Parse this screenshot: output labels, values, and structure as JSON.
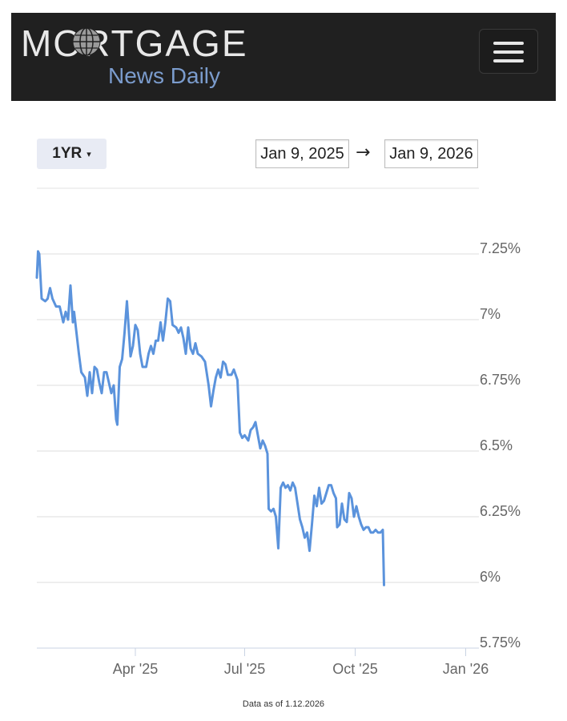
{
  "header": {
    "logo_top": "MORTGAGE",
    "logo_sub": "News Daily",
    "menu_icon": "hamburger-icon"
  },
  "controls": {
    "range_label": "1YR",
    "range_caret": "▾",
    "start_date": "Jan 9, 2025",
    "arrow": "→",
    "end_date": "Jan 9, 2026"
  },
  "footer": {
    "note": "Data as of 1.12.2026"
  },
  "colors": {
    "header_bg": "#202020",
    "line": "#5b93dc",
    "logo_accent": "#7b9ccd"
  },
  "chart_data": {
    "type": "line",
    "title": "",
    "xlabel": "",
    "ylabel": "",
    "ylim": [
      5.75,
      7.5
    ],
    "xlim": [
      "2025-01-09",
      "2026-01-12"
    ],
    "y_ticks": [
      {
        "value": 7.25,
        "label": "7.25%"
      },
      {
        "value": 7.0,
        "label": "7%"
      },
      {
        "value": 6.75,
        "label": "6.75%"
      },
      {
        "value": 6.5,
        "label": "6.5%"
      },
      {
        "value": 6.25,
        "label": "6.25%"
      },
      {
        "value": 6.0,
        "label": "6%"
      },
      {
        "value": 5.75,
        "label": "5.75%"
      }
    ],
    "x_ticks": [
      {
        "date": "2025-04-01",
        "label": "Apr '25"
      },
      {
        "date": "2025-07-01",
        "label": "Jul '25"
      },
      {
        "date": "2025-10-01",
        "label": "Oct '25"
      },
      {
        "date": "2026-01-01",
        "label": "Jan '26"
      }
    ],
    "grid": true,
    "series": [
      {
        "points": [
          [
            "2025-01-09",
            7.16
          ],
          [
            "2025-01-10",
            7.26
          ],
          [
            "2025-01-11",
            7.25
          ],
          [
            "2025-01-13",
            7.08
          ],
          [
            "2025-01-16",
            7.07
          ],
          [
            "2025-01-18",
            7.08
          ],
          [
            "2025-01-20",
            7.12
          ],
          [
            "2025-01-22",
            7.08
          ],
          [
            "2025-01-25",
            7.05
          ],
          [
            "2025-01-28",
            7.05
          ],
          [
            "2025-01-31",
            6.99
          ],
          [
            "2025-02-02",
            7.03
          ],
          [
            "2025-02-04",
            7.0
          ],
          [
            "2025-02-06",
            7.13
          ],
          [
            "2025-02-08",
            6.99
          ],
          [
            "2025-02-09",
            7.03
          ],
          [
            "2025-02-11",
            6.95
          ],
          [
            "2025-02-13",
            6.87
          ],
          [
            "2025-02-15",
            6.8
          ],
          [
            "2025-02-18",
            6.78
          ],
          [
            "2025-02-20",
            6.71
          ],
          [
            "2025-02-22",
            6.8
          ],
          [
            "2025-02-24",
            6.72
          ],
          [
            "2025-02-26",
            6.82
          ],
          [
            "2025-02-28",
            6.81
          ],
          [
            "2025-03-02",
            6.76
          ],
          [
            "2025-03-04",
            6.72
          ],
          [
            "2025-03-06",
            6.8
          ],
          [
            "2025-03-08",
            6.8
          ],
          [
            "2025-03-10",
            6.76
          ],
          [
            "2025-03-12",
            6.72
          ],
          [
            "2025-03-14",
            6.75
          ],
          [
            "2025-03-16",
            6.62
          ],
          [
            "2025-03-17",
            6.6
          ],
          [
            "2025-03-19",
            6.82
          ],
          [
            "2025-03-21",
            6.85
          ],
          [
            "2025-03-23",
            6.95
          ],
          [
            "2025-03-25",
            7.07
          ],
          [
            "2025-03-26",
            7.0
          ],
          [
            "2025-03-28",
            6.86
          ],
          [
            "2025-03-30",
            6.9
          ],
          [
            "2025-04-01",
            6.98
          ],
          [
            "2025-04-03",
            6.96
          ],
          [
            "2025-04-05",
            6.87
          ],
          [
            "2025-04-07",
            6.82
          ],
          [
            "2025-04-10",
            6.82
          ],
          [
            "2025-04-12",
            6.87
          ],
          [
            "2025-04-14",
            6.9
          ],
          [
            "2025-04-16",
            6.87
          ],
          [
            "2025-04-18",
            6.92
          ],
          [
            "2025-04-20",
            6.92
          ],
          [
            "2025-04-22",
            6.99
          ],
          [
            "2025-04-24",
            6.92
          ],
          [
            "2025-04-26",
            6.99
          ],
          [
            "2025-04-28",
            7.08
          ],
          [
            "2025-04-30",
            7.07
          ],
          [
            "2025-05-02",
            6.98
          ],
          [
            "2025-05-05",
            6.97
          ],
          [
            "2025-05-07",
            6.95
          ],
          [
            "2025-05-09",
            6.97
          ],
          [
            "2025-05-11",
            6.93
          ],
          [
            "2025-05-13",
            6.87
          ],
          [
            "2025-05-15",
            6.97
          ],
          [
            "2025-05-17",
            6.89
          ],
          [
            "2025-05-19",
            6.87
          ],
          [
            "2025-05-21",
            6.91
          ],
          [
            "2025-05-23",
            6.87
          ],
          [
            "2025-05-26",
            6.86
          ],
          [
            "2025-05-29",
            6.84
          ],
          [
            "2025-06-01",
            6.75
          ],
          [
            "2025-06-03",
            6.67
          ],
          [
            "2025-06-05",
            6.73
          ],
          [
            "2025-06-07",
            6.78
          ],
          [
            "2025-06-09",
            6.81
          ],
          [
            "2025-06-11",
            6.78
          ],
          [
            "2025-06-13",
            6.84
          ],
          [
            "2025-06-15",
            6.83
          ],
          [
            "2025-06-17",
            6.79
          ],
          [
            "2025-06-20",
            6.79
          ],
          [
            "2025-06-22",
            6.81
          ],
          [
            "2025-06-25",
            6.77
          ],
          [
            "2025-06-27",
            6.57
          ],
          [
            "2025-06-29",
            6.55
          ],
          [
            "2025-07-01",
            6.56
          ],
          [
            "2025-07-04",
            6.54
          ],
          [
            "2025-07-06",
            6.58
          ],
          [
            "2025-07-08",
            6.59
          ],
          [
            "2025-07-10",
            6.61
          ],
          [
            "2025-07-12",
            6.56
          ],
          [
            "2025-07-14",
            6.51
          ],
          [
            "2025-07-16",
            6.54
          ],
          [
            "2025-07-18",
            6.52
          ],
          [
            "2025-07-20",
            6.49
          ],
          [
            "2025-07-21",
            6.28
          ],
          [
            "2025-07-23",
            6.27
          ],
          [
            "2025-07-25",
            6.28
          ],
          [
            "2025-07-27",
            6.25
          ],
          [
            "2025-07-29",
            6.13
          ],
          [
            "2025-07-31",
            6.36
          ],
          [
            "2025-08-02",
            6.38
          ],
          [
            "2025-08-04",
            6.36
          ],
          [
            "2025-08-06",
            6.37
          ],
          [
            "2025-08-08",
            6.35
          ],
          [
            "2025-08-10",
            6.38
          ],
          [
            "2025-08-12",
            6.36
          ],
          [
            "2025-08-14",
            6.3
          ],
          [
            "2025-08-16",
            6.24
          ],
          [
            "2025-08-18",
            6.21
          ],
          [
            "2025-08-20",
            6.17
          ],
          [
            "2025-08-22",
            6.19
          ],
          [
            "2025-08-24",
            6.12
          ],
          [
            "2025-08-26",
            6.22
          ],
          [
            "2025-08-28",
            6.33
          ],
          [
            "2025-08-30",
            6.29
          ],
          [
            "2025-09-01",
            6.36
          ],
          [
            "2025-09-03",
            6.3
          ],
          [
            "2025-09-05",
            6.31
          ],
          [
            "2025-09-07",
            6.34
          ],
          [
            "2025-09-09",
            6.37
          ],
          [
            "2025-09-11",
            6.37
          ],
          [
            "2025-09-13",
            6.34
          ],
          [
            "2025-09-15",
            6.32
          ],
          [
            "2025-09-16",
            6.21
          ],
          [
            "2025-09-18",
            6.22
          ],
          [
            "2025-09-20",
            6.3
          ],
          [
            "2025-09-22",
            6.24
          ],
          [
            "2025-09-24",
            6.23
          ],
          [
            "2025-09-26",
            6.34
          ],
          [
            "2025-09-28",
            6.32
          ],
          [
            "2025-09-30",
            6.25
          ],
          [
            "2025-10-02",
            6.29
          ],
          [
            "2025-10-04",
            6.25
          ],
          [
            "2025-10-06",
            6.22
          ],
          [
            "2025-10-08",
            6.2
          ],
          [
            "2025-10-10",
            6.21
          ],
          [
            "2025-10-12",
            6.21
          ],
          [
            "2025-10-14",
            6.19
          ],
          [
            "2025-10-16",
            6.19
          ],
          [
            "2025-10-18",
            6.2
          ],
          [
            "2025-10-20",
            6.19
          ],
          [
            "2025-10-22",
            6.19
          ],
          [
            "2025-10-24",
            6.2
          ],
          [
            "2025-10-25",
            5.99
          ]
        ]
      }
    ]
  }
}
